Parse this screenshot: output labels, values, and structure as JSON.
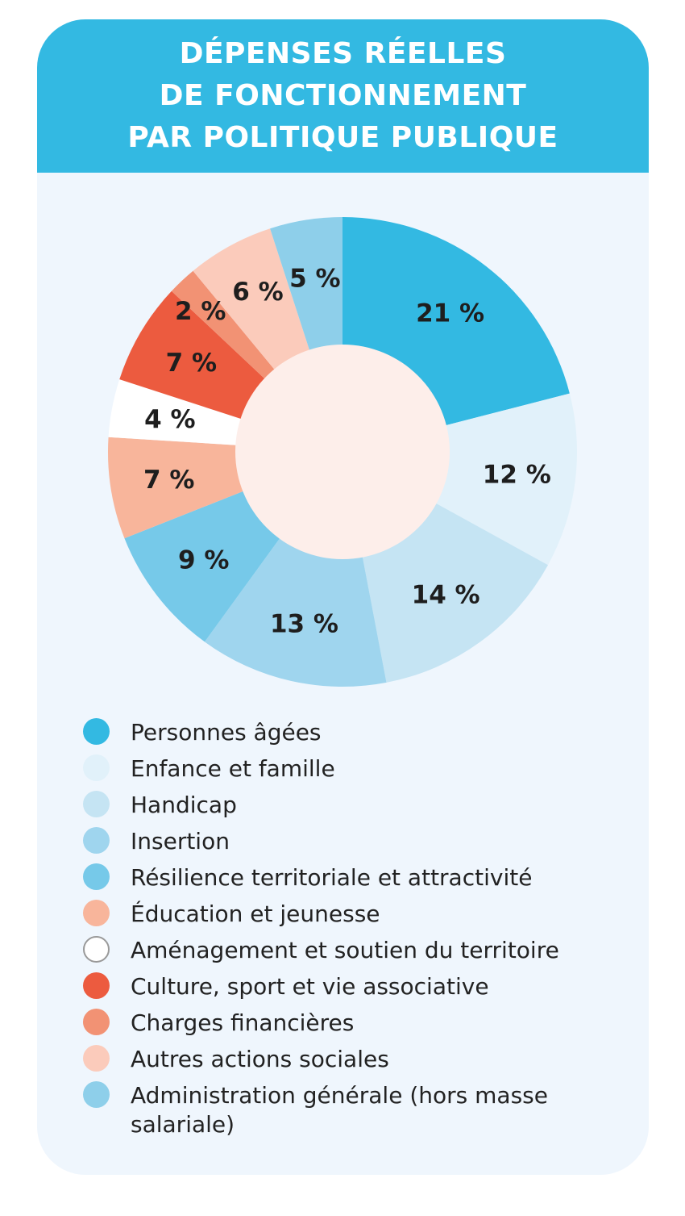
{
  "title_lines": [
    "DÉPENSES RÉELLES",
    "DE FONCTIONNEMENT",
    "PAR POLITIQUE PUBLIQUE"
  ],
  "chart_data": {
    "type": "pie",
    "donut": true,
    "title": "DÉPENSES RÉELLES DE FONCTIONNEMENT PAR POLITIQUE PUBLIQUE",
    "legend_position": "bottom",
    "categories": [
      "Personnes âgées",
      "Enfance et famille",
      "Handicap",
      "Insertion",
      "Résilience territoriale et attractivité",
      "Éducation et jeunesse",
      "Aménagement et soutien du territoire",
      "Culture, sport et vie associative",
      "Charges financières",
      "Autres actions sociales",
      "Administration générale (hors masse salariale)"
    ],
    "values": [
      21,
      12,
      14,
      13,
      9,
      7,
      4,
      7,
      2,
      6,
      5
    ],
    "labels": [
      "21 %",
      "12 %",
      "14 %",
      "13 %",
      "9 %",
      "7 %",
      "4 %",
      "7 %",
      "2 %",
      "6 %",
      "5 %"
    ],
    "colors": [
      "#33b9e2",
      "#e1f1fa",
      "#c5e4f3",
      "#9fd5ee",
      "#76c9e9",
      "#f8b59b",
      "#ffffff",
      "#ec5b3f",
      "#f29274",
      "#fbcbbb",
      "#8ecfea"
    ],
    "center_color": "#fdeeea"
  }
}
